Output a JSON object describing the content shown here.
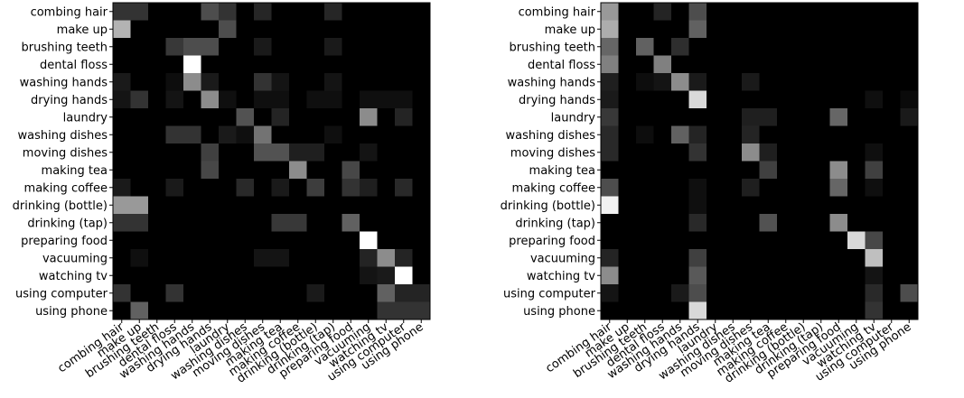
{
  "chart_data": [
    {
      "type": "heatmap",
      "title": "",
      "xlabel": "",
      "ylabel": "",
      "colormap": "grayscale (black = 0, white = 1)",
      "rows": [
        "combing hair",
        "make up",
        "brushing teeth",
        "dental floss",
        "washing hands",
        "drying hands",
        "laundry",
        "washing dishes",
        "moving dishes",
        "making tea",
        "making coffee",
        "drinking (bottle)",
        "drinking (tap)",
        "preparing food",
        "vacuuming",
        "watching tv",
        "using computer",
        "using phone"
      ],
      "columns": [
        "combing hair",
        "make up",
        "brushing teeth",
        "dental floss",
        "washing hands",
        "drying hands",
        "laundry",
        "washing dishes",
        "moving dishes",
        "making tea",
        "making coffee",
        "drinking (bottle)",
        "drinking (tap)",
        "preparing food",
        "vacuuming",
        "watching tv",
        "using computer",
        "using phone"
      ],
      "values": [
        [
          0.2,
          0.2,
          0,
          0,
          0,
          0.3,
          0.2,
          0,
          0.15,
          0,
          0,
          0,
          0.15,
          0,
          0,
          0,
          0,
          0
        ],
        [
          0.7,
          0,
          0,
          0,
          0,
          0,
          0.3,
          0,
          0,
          0,
          0,
          0,
          0,
          0,
          0,
          0,
          0,
          0
        ],
        [
          0,
          0,
          0,
          0.22,
          0.3,
          0.3,
          0,
          0,
          0.1,
          0,
          0,
          0,
          0.1,
          0,
          0,
          0,
          0,
          0
        ],
        [
          0,
          0,
          0,
          0,
          1.0,
          0,
          0,
          0,
          0,
          0,
          0,
          0,
          0,
          0,
          0,
          0,
          0,
          0
        ],
        [
          0.1,
          0,
          0,
          0.05,
          0.55,
          0.1,
          0,
          0,
          0.2,
          0.08,
          0,
          0,
          0.08,
          0,
          0,
          0,
          0,
          0
        ],
        [
          0.08,
          0.2,
          0,
          0.08,
          0,
          0.55,
          0.06,
          0,
          0.06,
          0.06,
          0,
          0.06,
          0.06,
          0,
          0.06,
          0.06,
          0.06,
          0
        ],
        [
          0,
          0,
          0,
          0,
          0,
          0,
          0,
          0.32,
          0,
          0.14,
          0,
          0,
          0,
          0,
          0.55,
          0,
          0.14,
          0
        ],
        [
          0,
          0,
          0,
          0.2,
          0.2,
          0,
          0.1,
          0.06,
          0.45,
          0,
          0,
          0,
          0.06,
          0,
          0,
          0,
          0,
          0
        ],
        [
          0,
          0,
          0,
          0,
          0,
          0.25,
          0,
          0,
          0.32,
          0.32,
          0.12,
          0.12,
          0,
          0,
          0.08,
          0,
          0,
          0
        ],
        [
          0,
          0,
          0,
          0,
          0,
          0.28,
          0,
          0,
          0,
          0,
          0.55,
          0,
          0,
          0.28,
          0,
          0,
          0,
          0
        ],
        [
          0.1,
          0,
          0,
          0.1,
          0,
          0,
          0,
          0.16,
          0,
          0.1,
          0,
          0.24,
          0,
          0.2,
          0.12,
          0,
          0.16,
          0
        ],
        [
          0.6,
          0.6,
          0,
          0,
          0,
          0,
          0,
          0,
          0,
          0,
          0,
          0,
          0,
          0,
          0,
          0,
          0,
          0
        ],
        [
          0.2,
          0.2,
          0,
          0,
          0,
          0,
          0,
          0,
          0,
          0.22,
          0.22,
          0,
          0,
          0.38,
          0,
          0,
          0,
          0
        ],
        [
          0,
          0,
          0,
          0,
          0,
          0,
          0,
          0,
          0,
          0,
          0,
          0,
          0,
          0,
          1.0,
          0,
          0,
          0
        ],
        [
          0,
          0.06,
          0,
          0,
          0,
          0,
          0,
          0,
          0.08,
          0.08,
          0,
          0,
          0,
          0,
          0.14,
          0.55,
          0.14,
          0
        ],
        [
          0,
          0,
          0,
          0,
          0,
          0,
          0,
          0,
          0,
          0,
          0,
          0,
          0,
          0,
          0.08,
          0.1,
          1.0,
          0
        ],
        [
          0.2,
          0,
          0,
          0.2,
          0,
          0,
          0,
          0,
          0,
          0,
          0,
          0.1,
          0,
          0,
          0,
          0.38,
          0.14,
          0.14
        ],
        [
          0,
          0.38,
          0,
          0,
          0,
          0,
          0,
          0,
          0,
          0,
          0,
          0,
          0,
          0,
          0,
          0.2,
          0.2,
          0.2
        ]
      ]
    },
    {
      "type": "heatmap",
      "title": "",
      "xlabel": "",
      "ylabel": "",
      "colormap": "grayscale (black = 0, white = 1)",
      "rows": [
        "combing hair",
        "make up",
        "brushing teeth",
        "dental floss",
        "washing hands",
        "drying hands",
        "laundry",
        "washing dishes",
        "moving dishes",
        "making tea",
        "making coffee",
        "drinking (bottle)",
        "drinking (tap)",
        "preparing food",
        "vacuuming",
        "watching tv",
        "using computer",
        "using phone"
      ],
      "columns": [
        "combing hair",
        "make up",
        "brushing teeth",
        "dental floss",
        "washing hands",
        "drying hands",
        "laundry",
        "washing dishes",
        "moving dishes",
        "making tea",
        "making coffee",
        "drinking (bottle)",
        "drinking (tap)",
        "preparing food",
        "vacuuming",
        "watching tv",
        "using computer",
        "using phone"
      ],
      "values": [
        [
          0.6,
          0,
          0,
          0.14,
          0,
          0.3,
          0,
          0,
          0,
          0,
          0,
          0,
          0,
          0,
          0,
          0,
          0,
          0
        ],
        [
          0.68,
          0,
          0,
          0,
          0,
          0.38,
          0,
          0,
          0,
          0,
          0,
          0,
          0,
          0,
          0,
          0,
          0,
          0
        ],
        [
          0.4,
          0,
          0.38,
          0,
          0.18,
          0,
          0,
          0,
          0,
          0,
          0,
          0,
          0,
          0,
          0,
          0,
          0,
          0
        ],
        [
          0.5,
          0,
          0,
          0.5,
          0,
          0,
          0,
          0,
          0,
          0,
          0,
          0,
          0,
          0,
          0,
          0,
          0,
          0
        ],
        [
          0.12,
          0,
          0.05,
          0.08,
          0.55,
          0.1,
          0,
          0,
          0.1,
          0,
          0,
          0,
          0,
          0,
          0,
          0,
          0,
          0
        ],
        [
          0.1,
          0,
          0,
          0,
          0,
          0.85,
          0,
          0,
          0,
          0,
          0,
          0,
          0,
          0,
          0,
          0.06,
          0,
          0.04
        ],
        [
          0.22,
          0,
          0,
          0,
          0,
          0,
          0,
          0,
          0.12,
          0.12,
          0,
          0,
          0,
          0.4,
          0,
          0,
          0,
          0.1
        ],
        [
          0.16,
          0,
          0.05,
          0,
          0.38,
          0.14,
          0,
          0,
          0.14,
          0,
          0,
          0,
          0,
          0,
          0,
          0,
          0,
          0
        ],
        [
          0.16,
          0,
          0,
          0,
          0,
          0.2,
          0,
          0,
          0.55,
          0.12,
          0,
          0,
          0,
          0,
          0,
          0.06,
          0,
          0
        ],
        [
          0,
          0,
          0,
          0,
          0,
          0,
          0,
          0,
          0,
          0.25,
          0,
          0,
          0,
          0.55,
          0,
          0.25,
          0,
          0
        ],
        [
          0.3,
          0,
          0,
          0,
          0,
          0.06,
          0,
          0,
          0.12,
          0,
          0,
          0,
          0,
          0.4,
          0,
          0.06,
          0,
          0
        ],
        [
          0.95,
          0,
          0,
          0,
          0,
          0.06,
          0,
          0,
          0,
          0,
          0,
          0,
          0,
          0,
          0,
          0,
          0,
          0
        ],
        [
          0,
          0,
          0,
          0,
          0,
          0.16,
          0,
          0,
          0,
          0.32,
          0,
          0,
          0,
          0.55,
          0,
          0,
          0,
          0
        ],
        [
          0,
          0,
          0,
          0,
          0,
          0,
          0,
          0,
          0,
          0,
          0,
          0,
          0,
          0,
          0.85,
          0.28,
          0,
          0
        ],
        [
          0.14,
          0,
          0,
          0,
          0,
          0.25,
          0,
          0,
          0,
          0,
          0,
          0,
          0,
          0,
          0,
          0.75,
          0,
          0
        ],
        [
          0.55,
          0,
          0,
          0,
          0,
          0.35,
          0,
          0,
          0,
          0,
          0,
          0,
          0,
          0,
          0,
          0.08,
          0,
          0
        ],
        [
          0.08,
          0,
          0,
          0,
          0.1,
          0.3,
          0,
          0,
          0,
          0,
          0,
          0,
          0,
          0,
          0,
          0.16,
          0,
          0.3
        ],
        [
          0,
          0,
          0,
          0,
          0,
          0.85,
          0,
          0,
          0,
          0,
          0,
          0,
          0,
          0,
          0,
          0.2,
          0,
          0
        ]
      ]
    }
  ]
}
